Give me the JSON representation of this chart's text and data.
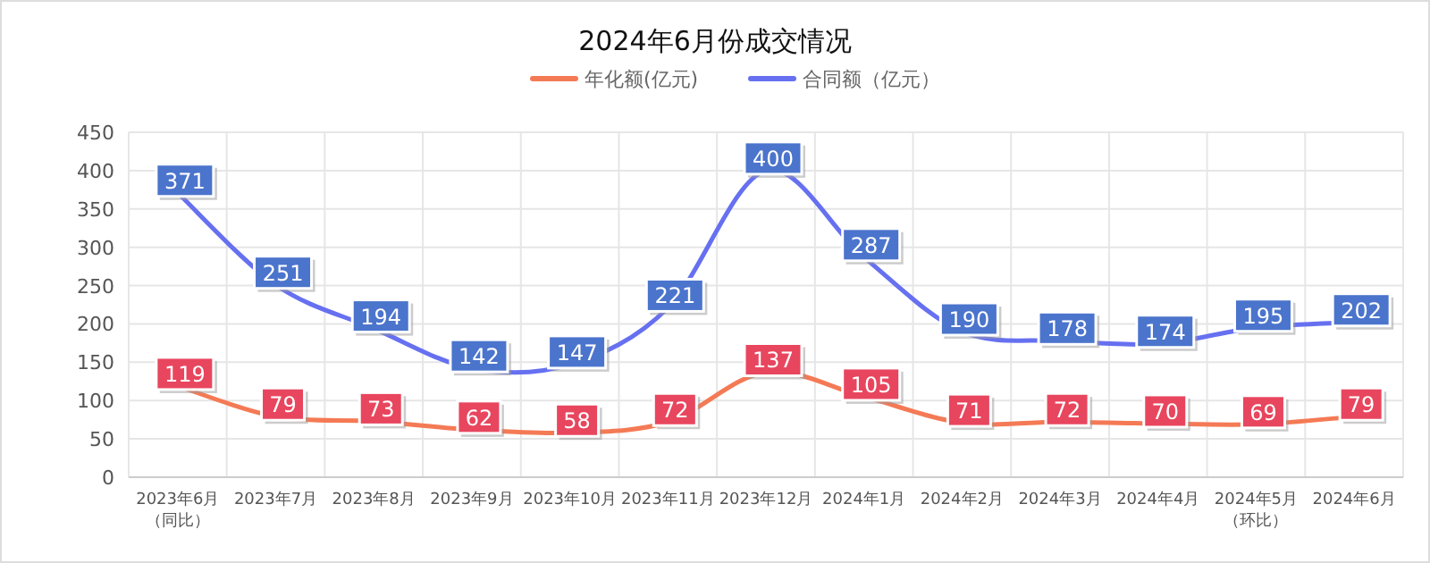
{
  "chart_data": {
    "type": "line",
    "title": "2024年6月份成交情况",
    "categories": [
      "2023年6月（同比）",
      "2023年7月",
      "2023年8月",
      "2023年9月",
      "2023年10月",
      "2023年11月",
      "2023年12月",
      "2024年1月",
      "2024年2月",
      "2024年3月",
      "2024年4月",
      "2024年5月（环比）",
      "2024年6月"
    ],
    "series": [
      {
        "name": "年化额(亿元)",
        "color": "#f47a55",
        "values": [
          119,
          79,
          73,
          62,
          58,
          72,
          137,
          105,
          71,
          72,
          70,
          69,
          79
        ]
      },
      {
        "name": "合同额（亿元）",
        "color": "#6670f0",
        "values": [
          371,
          251,
          194,
          142,
          147,
          221,
          400,
          287,
          190,
          178,
          174,
          195,
          202
        ]
      }
    ],
    "ylim": [
      0,
      450
    ],
    "yticks": [
      0,
      50,
      100,
      150,
      200,
      250,
      300,
      350,
      400,
      450
    ],
    "grid": true,
    "legend": "top",
    "data_labels": true,
    "marker": "none",
    "line_style": "solid"
  }
}
